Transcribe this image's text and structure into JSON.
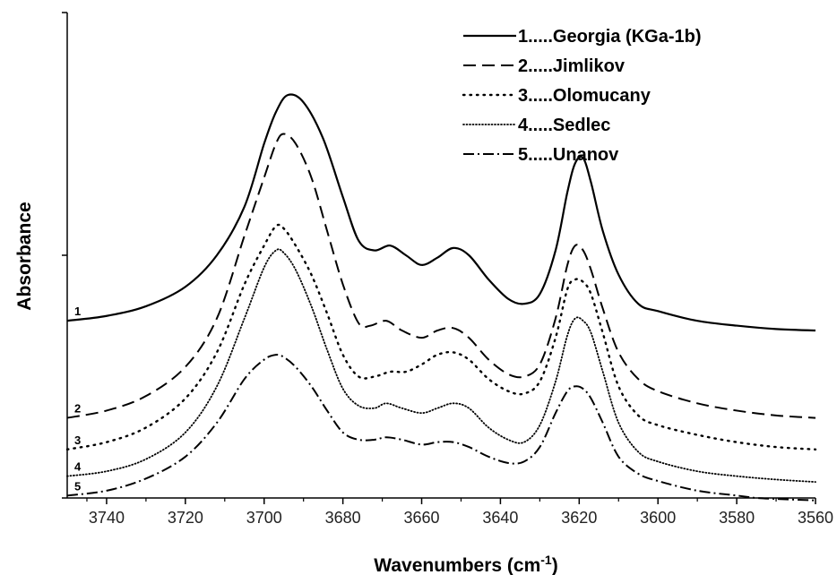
{
  "chart_data": {
    "type": "line",
    "title": "",
    "xlabel": "Wavenumbers (cm",
    "xlabel_sup": "-1",
    "xlabel_tail": ")",
    "ylabel": "Absorbance",
    "xlim": [
      3750,
      3560
    ],
    "x_reversed": true,
    "ylim": [
      0,
      10
    ],
    "x_ticks": [
      "3740",
      "3720",
      "3700",
      "3680",
      "3660",
      "3640",
      "3620",
      "3600",
      "3580",
      "3560"
    ],
    "y_ticks_labeled": false,
    "grid": false,
    "legend_position": "top-right",
    "series": [
      {
        "name": "1.....Georgia (KGa-1b)",
        "tag": "1",
        "dash": "solid",
        "points": [
          [
            3750,
            3.65
          ],
          [
            3740,
            3.75
          ],
          [
            3730,
            3.95
          ],
          [
            3720,
            4.35
          ],
          [
            3712,
            5.0
          ],
          [
            3705,
            6.0
          ],
          [
            3700,
            7.3
          ],
          [
            3697,
            7.95
          ],
          [
            3694,
            8.3
          ],
          [
            3690,
            8.15
          ],
          [
            3685,
            7.4
          ],
          [
            3680,
            6.2
          ],
          [
            3676,
            5.3
          ],
          [
            3672,
            5.1
          ],
          [
            3668,
            5.2
          ],
          [
            3664,
            5.0
          ],
          [
            3660,
            4.8
          ],
          [
            3656,
            4.95
          ],
          [
            3652,
            5.15
          ],
          [
            3648,
            5.0
          ],
          [
            3643,
            4.5
          ],
          [
            3638,
            4.1
          ],
          [
            3634,
            4.0
          ],
          [
            3630,
            4.2
          ],
          [
            3626,
            5.1
          ],
          [
            3623,
            6.3
          ],
          [
            3621,
            6.9
          ],
          [
            3619,
            7.0
          ],
          [
            3617,
            6.5
          ],
          [
            3614,
            5.5
          ],
          [
            3610,
            4.6
          ],
          [
            3605,
            4.0
          ],
          [
            3600,
            3.85
          ],
          [
            3590,
            3.65
          ],
          [
            3580,
            3.55
          ],
          [
            3570,
            3.48
          ],
          [
            3560,
            3.45
          ]
        ]
      },
      {
        "name": "2.....Jimlikov",
        "tag": "2",
        "dash": "dashed",
        "points": [
          [
            3750,
            1.65
          ],
          [
            3740,
            1.8
          ],
          [
            3730,
            2.1
          ],
          [
            3720,
            2.7
          ],
          [
            3712,
            3.7
          ],
          [
            3705,
            5.4
          ],
          [
            3700,
            6.6
          ],
          [
            3697,
            7.3
          ],
          [
            3695,
            7.5
          ],
          [
            3692,
            7.3
          ],
          [
            3688,
            6.6
          ],
          [
            3684,
            5.5
          ],
          [
            3680,
            4.4
          ],
          [
            3676,
            3.6
          ],
          [
            3673,
            3.55
          ],
          [
            3669,
            3.65
          ],
          [
            3665,
            3.45
          ],
          [
            3660,
            3.3
          ],
          [
            3656,
            3.45
          ],
          [
            3652,
            3.5
          ],
          [
            3648,
            3.3
          ],
          [
            3643,
            2.85
          ],
          [
            3638,
            2.55
          ],
          [
            3634,
            2.5
          ],
          [
            3630,
            2.75
          ],
          [
            3626,
            3.7
          ],
          [
            3623,
            4.8
          ],
          [
            3621,
            5.2
          ],
          [
            3619,
            5.1
          ],
          [
            3617,
            4.7
          ],
          [
            3614,
            3.9
          ],
          [
            3610,
            3.0
          ],
          [
            3605,
            2.45
          ],
          [
            3600,
            2.2
          ],
          [
            3590,
            1.95
          ],
          [
            3580,
            1.8
          ],
          [
            3570,
            1.7
          ],
          [
            3560,
            1.65
          ]
        ]
      },
      {
        "name": "3.....Olomucany",
        "tag": "3",
        "dash": "dotted",
        "points": [
          [
            3750,
            1.0
          ],
          [
            3740,
            1.15
          ],
          [
            3730,
            1.45
          ],
          [
            3720,
            2.05
          ],
          [
            3712,
            3.0
          ],
          [
            3705,
            4.4
          ],
          [
            3700,
            5.2
          ],
          [
            3697,
            5.6
          ],
          [
            3695,
            5.55
          ],
          [
            3692,
            5.2
          ],
          [
            3688,
            4.6
          ],
          [
            3684,
            3.8
          ],
          [
            3680,
            2.95
          ],
          [
            3676,
            2.5
          ],
          [
            3672,
            2.5
          ],
          [
            3668,
            2.6
          ],
          [
            3664,
            2.6
          ],
          [
            3660,
            2.75
          ],
          [
            3656,
            2.95
          ],
          [
            3652,
            3.0
          ],
          [
            3648,
            2.85
          ],
          [
            3643,
            2.45
          ],
          [
            3638,
            2.2
          ],
          [
            3634,
            2.15
          ],
          [
            3630,
            2.4
          ],
          [
            3626,
            3.3
          ],
          [
            3623,
            4.3
          ],
          [
            3621,
            4.5
          ],
          [
            3619,
            4.45
          ],
          [
            3617,
            4.2
          ],
          [
            3614,
            3.4
          ],
          [
            3610,
            2.3
          ],
          [
            3605,
            1.7
          ],
          [
            3600,
            1.5
          ],
          [
            3590,
            1.3
          ],
          [
            3580,
            1.15
          ],
          [
            3570,
            1.05
          ],
          [
            3560,
            1.0
          ]
        ]
      },
      {
        "name": "4.....Sedlec",
        "tag": "4",
        "dash": "fine-dotted",
        "points": [
          [
            3750,
            0.45
          ],
          [
            3740,
            0.55
          ],
          [
            3730,
            0.8
          ],
          [
            3720,
            1.35
          ],
          [
            3712,
            2.3
          ],
          [
            3705,
            3.7
          ],
          [
            3700,
            4.75
          ],
          [
            3697,
            5.1
          ],
          [
            3695,
            5.05
          ],
          [
            3692,
            4.7
          ],
          [
            3688,
            3.95
          ],
          [
            3684,
            3.05
          ],
          [
            3680,
            2.25
          ],
          [
            3676,
            1.9
          ],
          [
            3672,
            1.85
          ],
          [
            3669,
            1.95
          ],
          [
            3665,
            1.85
          ],
          [
            3660,
            1.75
          ],
          [
            3656,
            1.85
          ],
          [
            3652,
            1.95
          ],
          [
            3648,
            1.85
          ],
          [
            3643,
            1.45
          ],
          [
            3638,
            1.2
          ],
          [
            3634,
            1.15
          ],
          [
            3630,
            1.5
          ],
          [
            3626,
            2.4
          ],
          [
            3623,
            3.35
          ],
          [
            3621,
            3.7
          ],
          [
            3619,
            3.65
          ],
          [
            3617,
            3.4
          ],
          [
            3614,
            2.6
          ],
          [
            3610,
            1.55
          ],
          [
            3605,
            0.95
          ],
          [
            3600,
            0.75
          ],
          [
            3590,
            0.55
          ],
          [
            3580,
            0.45
          ],
          [
            3570,
            0.38
          ],
          [
            3560,
            0.33
          ]
        ]
      },
      {
        "name": "5.....Unanov",
        "tag": "5",
        "dash": "dash-dot",
        "points": [
          [
            3750,
            0.05
          ],
          [
            3740,
            0.15
          ],
          [
            3730,
            0.4
          ],
          [
            3720,
            0.85
          ],
          [
            3712,
            1.55
          ],
          [
            3705,
            2.45
          ],
          [
            3700,
            2.85
          ],
          [
            3697,
            2.95
          ],
          [
            3695,
            2.9
          ],
          [
            3692,
            2.7
          ],
          [
            3688,
            2.3
          ],
          [
            3684,
            1.8
          ],
          [
            3680,
            1.35
          ],
          [
            3676,
            1.2
          ],
          [
            3672,
            1.2
          ],
          [
            3669,
            1.25
          ],
          [
            3665,
            1.2
          ],
          [
            3660,
            1.1
          ],
          [
            3656,
            1.15
          ],
          [
            3652,
            1.15
          ],
          [
            3648,
            1.05
          ],
          [
            3643,
            0.85
          ],
          [
            3638,
            0.72
          ],
          [
            3634,
            0.75
          ],
          [
            3630,
            1.05
          ],
          [
            3626,
            1.75
          ],
          [
            3623,
            2.2
          ],
          [
            3621,
            2.3
          ],
          [
            3619,
            2.25
          ],
          [
            3617,
            2.05
          ],
          [
            3614,
            1.55
          ],
          [
            3610,
            0.85
          ],
          [
            3605,
            0.5
          ],
          [
            3600,
            0.35
          ],
          [
            3590,
            0.15
          ],
          [
            3580,
            0.05
          ],
          [
            3575,
            0.0
          ],
          [
            3570,
            -0.02
          ],
          [
            3560,
            -0.05
          ]
        ]
      }
    ]
  }
}
